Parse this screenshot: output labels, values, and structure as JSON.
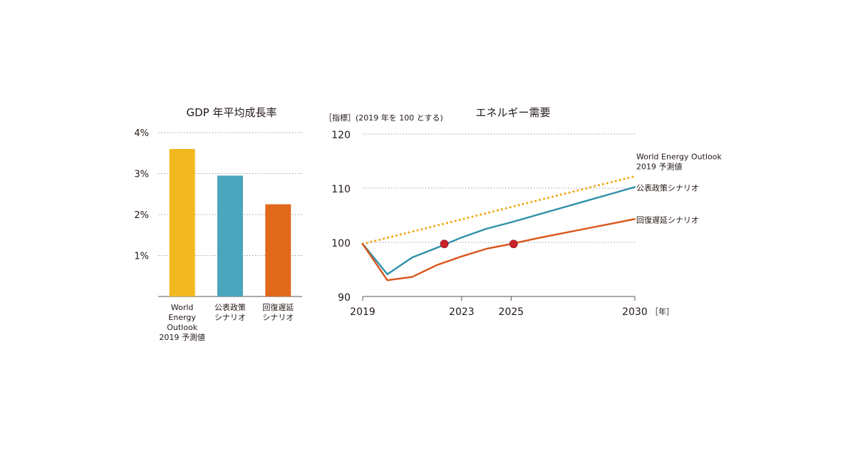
{
  "chart_data": [
    {
      "type": "bar",
      "title": "GDP 年平均成長率",
      "ylim": [
        0,
        4
      ],
      "yticks": [
        1,
        2,
        3,
        4
      ],
      "ytick_labels": [
        "1%",
        "2%",
        "3%",
        "4%"
      ],
      "grid": true,
      "categories": [
        [
          "World",
          "Energy",
          "Outlook",
          "2019 予測値"
        ],
        [
          "公表政策",
          "シナリオ"
        ],
        [
          "回復遅延",
          "シナリオ"
        ]
      ],
      "values": [
        3.6,
        2.95,
        2.25
      ],
      "colors": [
        "#f2b81f",
        "#4ba6bd",
        "#e0691b"
      ]
    },
    {
      "type": "line",
      "title": "エネルギー需要",
      "ylabel": "［指標］(2019 年を 100 とする)",
      "xunit": "［年］",
      "xlim": [
        2019,
        2030
      ],
      "ylim": [
        90,
        120
      ],
      "xticks": [
        2019,
        2023,
        2025,
        2030
      ],
      "yticks": [
        90,
        100,
        110,
        120
      ],
      "grid": true,
      "series": [
        {
          "name": "World Energy Outlook 2019 予測値",
          "name_lines": [
            "World Energy Outlook",
            "2019 予測値"
          ],
          "style": "dotted",
          "color": "#f2a60c",
          "x": [
            2019,
            2030
          ],
          "y": [
            99.7,
            112.2
          ]
        },
        {
          "name": "公表政策シナリオ",
          "name_lines": [
            "公表政策シナリオ"
          ],
          "style": "solid",
          "color": "#2f8fa9",
          "x": [
            2019,
            2020,
            2021,
            2022,
            2023,
            2024,
            2025,
            2026,
            2027,
            2028,
            2029,
            2030
          ],
          "y": [
            99.7,
            94.1,
            97.2,
            99.0,
            100.9,
            102.5,
            103.7,
            105.0,
            106.3,
            107.6,
            108.9,
            110.2
          ],
          "markers": []
        },
        {
          "name": "回復遅延シナリオ",
          "name_lines": [
            "回復遅延シナリオ"
          ],
          "style": "solid",
          "color": "#d9541a",
          "x": [
            2019,
            2020,
            2021,
            2022,
            2023,
            2024,
            2025,
            2026,
            2027,
            2028,
            2029,
            2030
          ],
          "y": [
            99.7,
            93.0,
            93.6,
            95.8,
            97.4,
            98.8,
            99.7,
            100.7,
            101.6,
            102.5,
            103.4,
            104.3
          ],
          "markers": []
        }
      ],
      "markers": [
        {
          "x": 2022.3,
          "y": 99.7
        },
        {
          "x": 2025.1,
          "y": 99.7
        }
      ],
      "marker_color": "#c8232c"
    }
  ]
}
